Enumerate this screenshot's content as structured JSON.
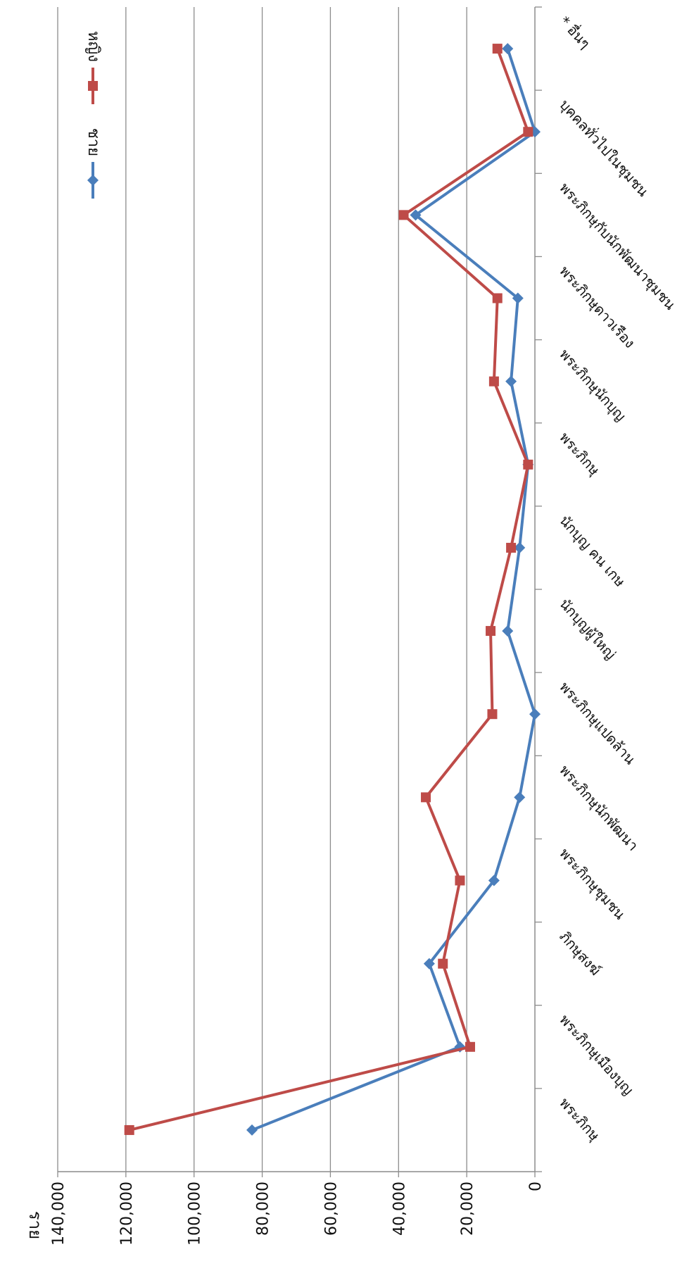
{
  "chart_data": {
    "type": "line",
    "orientation": "rotated-90",
    "ylabel": "ราย",
    "ylim": [
      0,
      140000
    ],
    "yticks": [
      0,
      20000,
      40000,
      60000,
      80000,
      100000,
      120000,
      140000
    ],
    "ytick_labels": [
      "0",
      "20,000",
      "40,000",
      "60,000",
      "80,000",
      "100,000",
      "120,000",
      "140,000"
    ],
    "grid": true,
    "legend_position": "top-left",
    "categories": [
      "พระภิกษุ",
      "พระภิกษุเมืองบุญ",
      "ภิกษุสงฆ์",
      "พระภิกษุชุมชน",
      "พระภิกษุนักพัฒนา",
      "พระภิกษุแปดล้าน",
      "นักบุญผู้ใหญ่",
      "นักบุญ คน เกษ",
      "พระภิกษุ",
      "พระภิกษุนักบุญ",
      "พระภิกษุดาวเรือง",
      "พระภิกษุกับนักพัฒนาชุมชน",
      "บุคคลทั่วไปในชุมชน",
      "* อื่นๆ"
    ],
    "series": [
      {
        "name": "ชาย",
        "color": "#4a7ebb",
        "marker": "diamond",
        "values": [
          83000,
          22000,
          31000,
          12000,
          4500,
          0,
          8000,
          4500,
          2000,
          7000,
          5000,
          35000,
          0,
          8000
        ]
      },
      {
        "name": "หญิง",
        "color": "#be4b48",
        "marker": "square",
        "values": [
          119000,
          19000,
          27000,
          22000,
          32000,
          12500,
          13000,
          7000,
          2000,
          12000,
          11000,
          38500,
          2000,
          11000
        ]
      }
    ]
  }
}
